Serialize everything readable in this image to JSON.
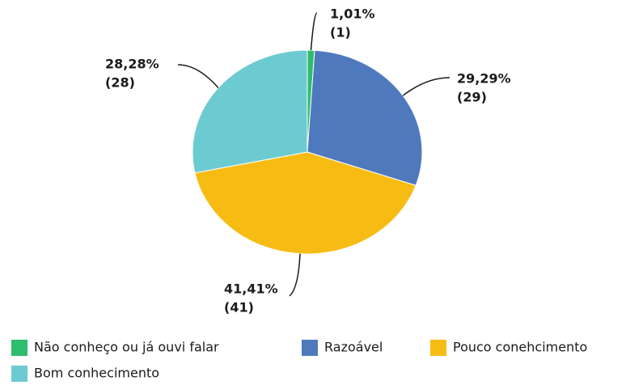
{
  "chart_data": {
    "type": "pie",
    "categories": [
      "Não conheço ou já ouvi falar",
      "Razoável",
      "Pouco conehcimento",
      "Bom conhecimento"
    ],
    "values": [
      1.01,
      29.29,
      41.41,
      28.28
    ],
    "value_labels": [
      "1,01%",
      "29,29%",
      "41,41%",
      "28,28%"
    ],
    "counts": [
      1,
      29,
      41,
      28
    ],
    "count_labels": [
      "(1)",
      "(29)",
      "(41)",
      "(28)"
    ],
    "colors": [
      "#2dbd6e",
      "#4e79bd",
      "#f7bc14",
      "#6ccbd0"
    ],
    "legend": "bottom"
  }
}
